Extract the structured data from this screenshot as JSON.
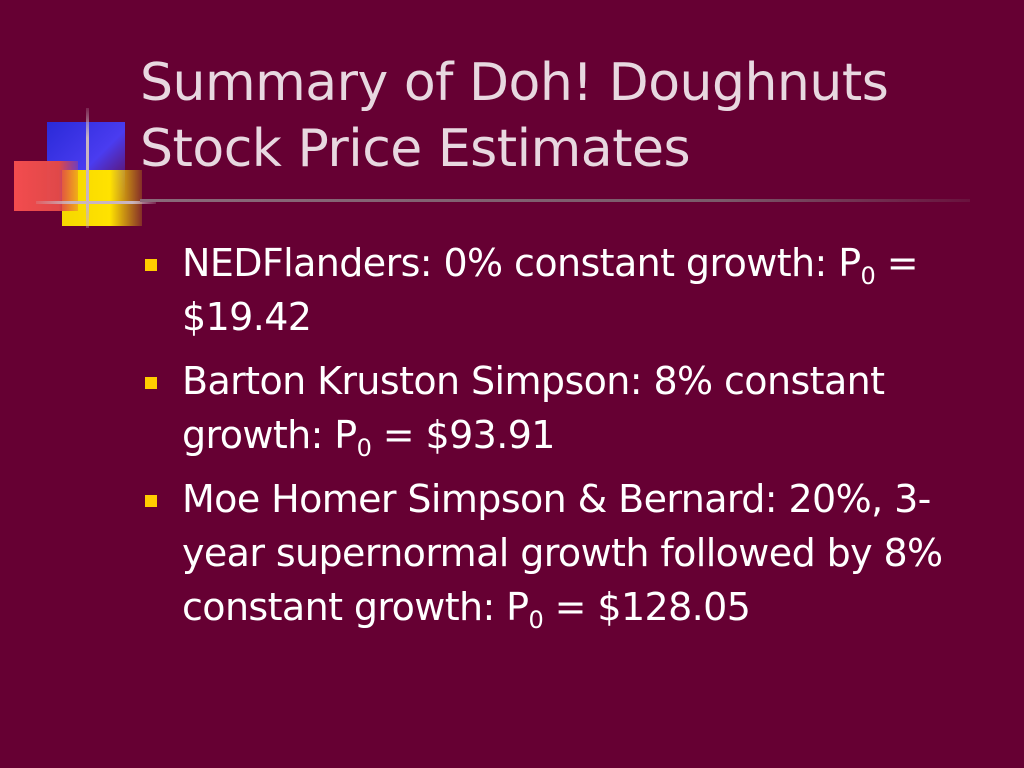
{
  "slide": {
    "title_lines": [
      "Summary of Doh! Doughnuts",
      "Stock Price Estimates"
    ],
    "bullets": [
      {
        "pre": "NEDFlanders: 0% constant growth: P",
        "sub": "0",
        "post": " = $19.42"
      },
      {
        "pre": "Barton Kruston Simpson: 8% constant growth: P",
        "sub": "0",
        "post": " = $93.91"
      },
      {
        "pre": "Moe Homer Simpson & Bernard: 20%, 3-year supernormal growth followed by 8% constant growth: P",
        "sub": "0",
        "post": " = $128.05"
      }
    ]
  },
  "colors": {
    "background": "#660033",
    "title": "#e8d8e0",
    "body_text": "#ffffff",
    "bullet": "#ffcc00"
  }
}
